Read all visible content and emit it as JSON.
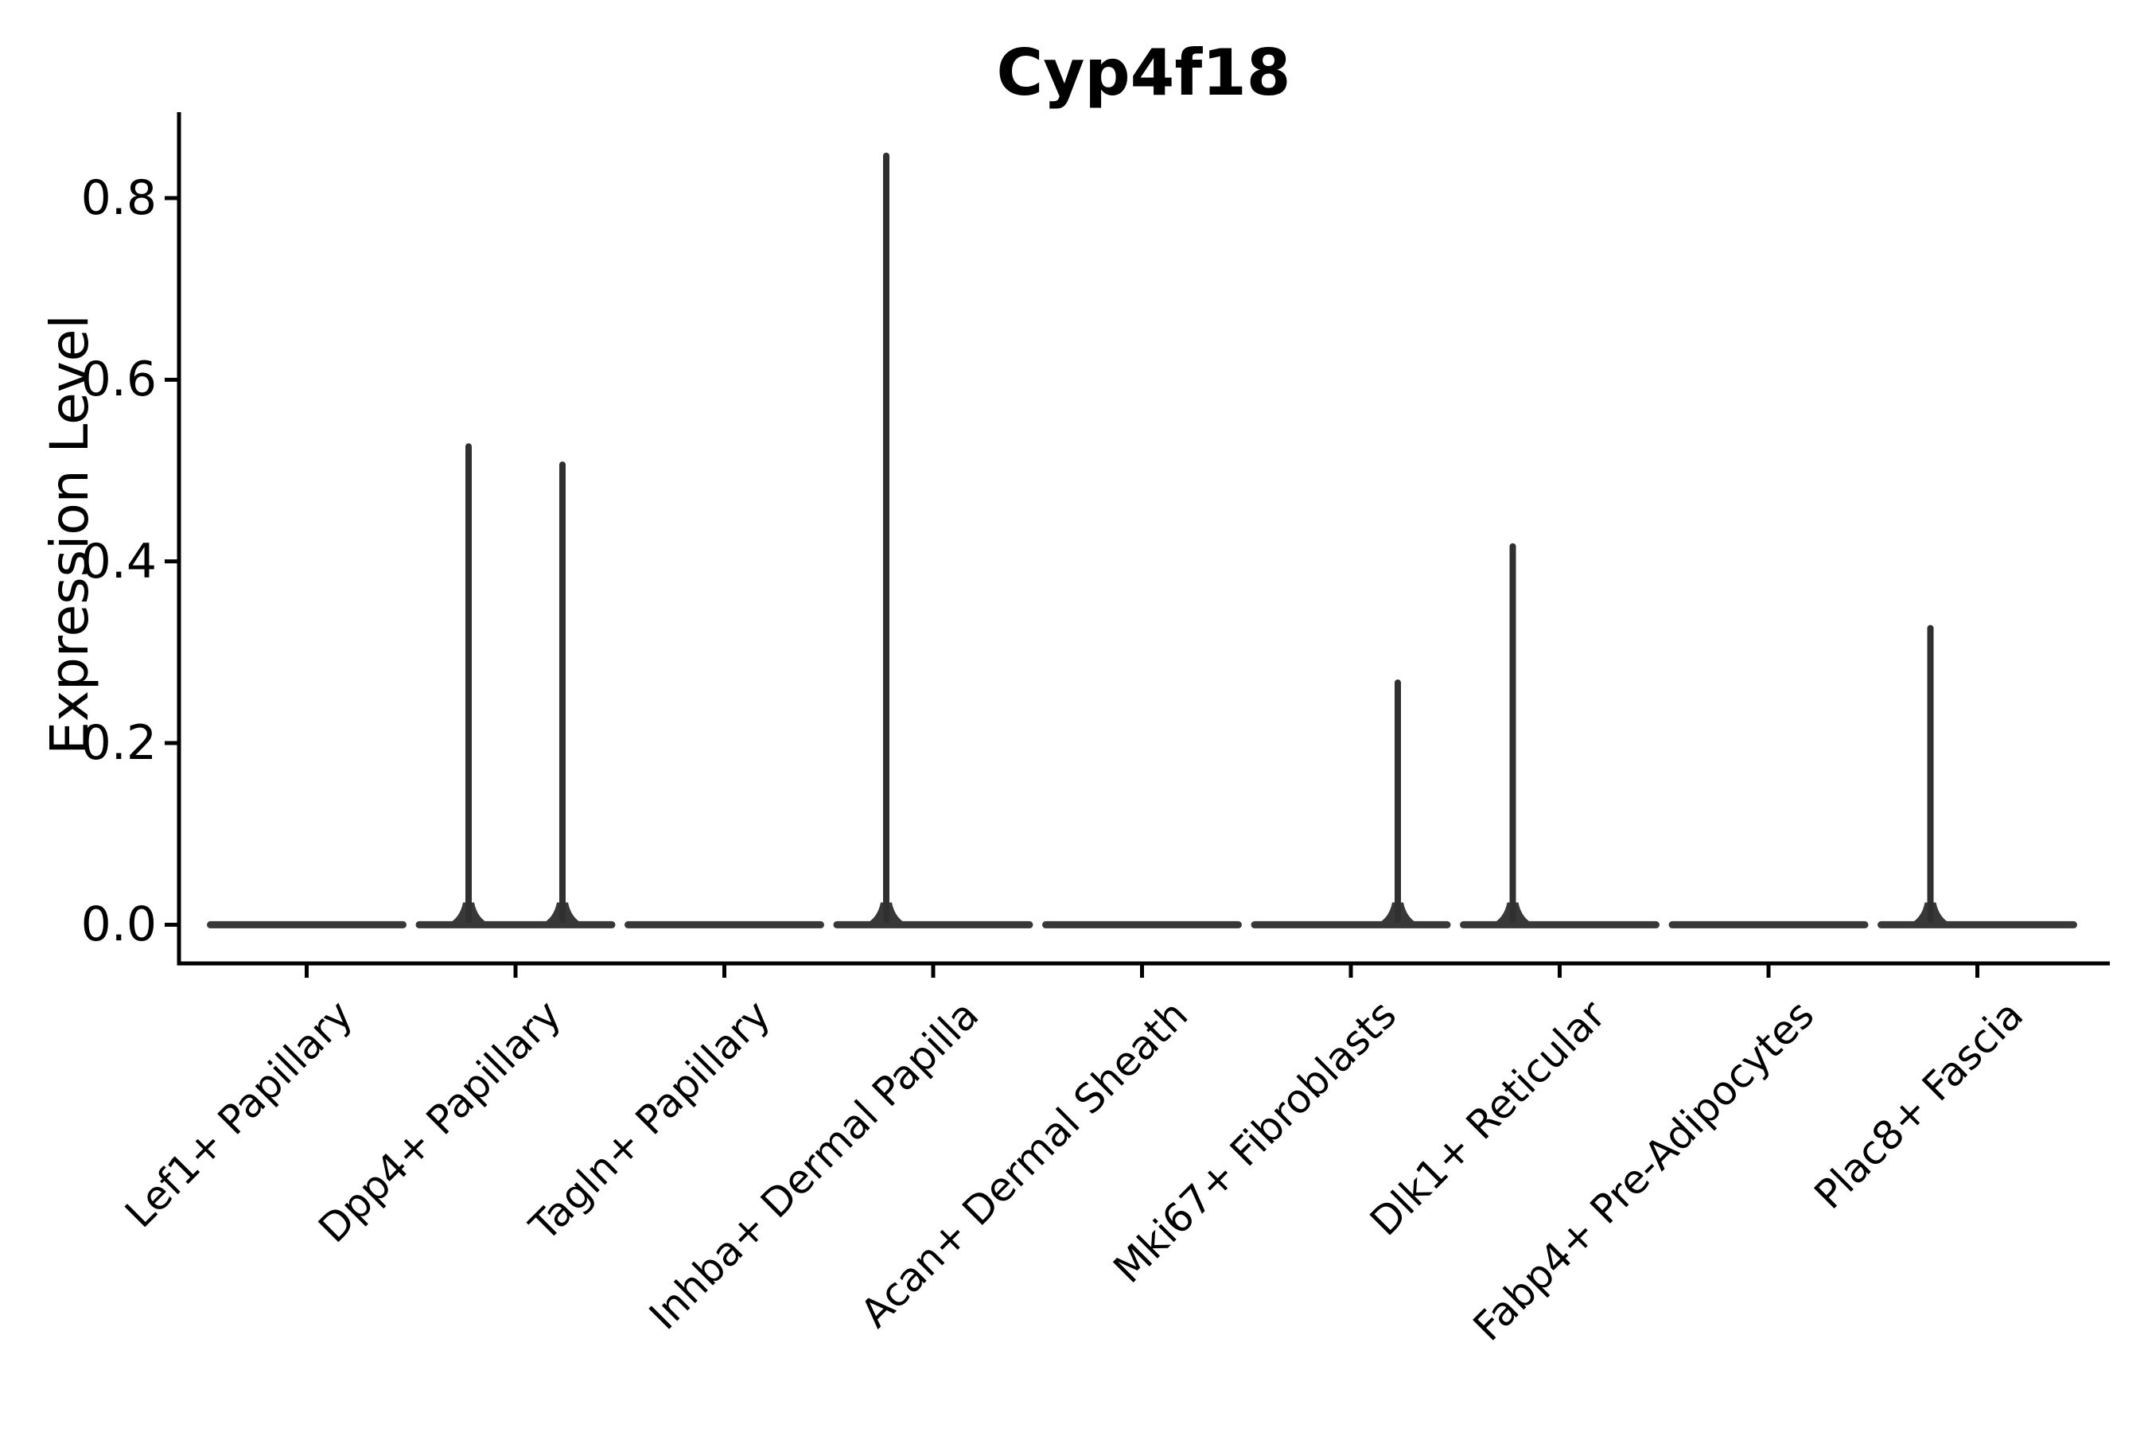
{
  "figure": {
    "title": "Cyp4f18",
    "y_axis_label": "Expression Level"
  },
  "chart_data": {
    "type": "violin",
    "title": "Cyp4f18",
    "xlabel": "",
    "ylabel": "Expression Level",
    "categories": [
      "Lef1+ Papillary",
      "Dpp4+ Papillary",
      "Tagln+ Papillary",
      "Inhba+ Dermal Papilla",
      "Acan+ Dermal Sheath",
      "Mki67+ Fibroblasts",
      "Dlk1+ Reticular",
      "Fabp4+ Pre-Adipocytes",
      "Plac8+ Fascia"
    ],
    "yticks": [
      0.0,
      0.2,
      0.4,
      0.6,
      0.8
    ],
    "ylim": [
      -0.04,
      0.89
    ],
    "grid": false,
    "legend": null,
    "violin_color": "#383838",
    "spike_color": "#303030",
    "axis_color": "#000000",
    "violins": [
      {
        "category": "Lef1+ Papillary",
        "bulk_at_zero": true,
        "spikes": []
      },
      {
        "category": "Dpp4+ Papillary",
        "bulk_at_zero": true,
        "spikes": [
          {
            "side": "left",
            "max_expression": 0.53
          },
          {
            "side": "right",
            "max_expression": 0.51
          }
        ]
      },
      {
        "category": "Tagln+ Papillary",
        "bulk_at_zero": true,
        "spikes": []
      },
      {
        "category": "Inhba+ Dermal Papilla",
        "bulk_at_zero": true,
        "spikes": [
          {
            "side": "left",
            "max_expression": 0.85
          }
        ]
      },
      {
        "category": "Acan+ Dermal Sheath",
        "bulk_at_zero": true,
        "spikes": []
      },
      {
        "category": "Mki67+ Fibroblasts",
        "bulk_at_zero": true,
        "spikes": [
          {
            "side": "right",
            "max_expression": 0.27
          }
        ]
      },
      {
        "category": "Dlk1+ Reticular",
        "bulk_at_zero": true,
        "spikes": [
          {
            "side": "left",
            "max_expression": 0.42
          }
        ]
      },
      {
        "category": "Fabp4+ Pre-Adipocytes",
        "bulk_at_zero": true,
        "spikes": []
      },
      {
        "category": "Plac8+ Fascia",
        "bulk_at_zero": true,
        "spikes": [
          {
            "side": "left",
            "max_expression": 0.33
          }
        ]
      }
    ]
  }
}
